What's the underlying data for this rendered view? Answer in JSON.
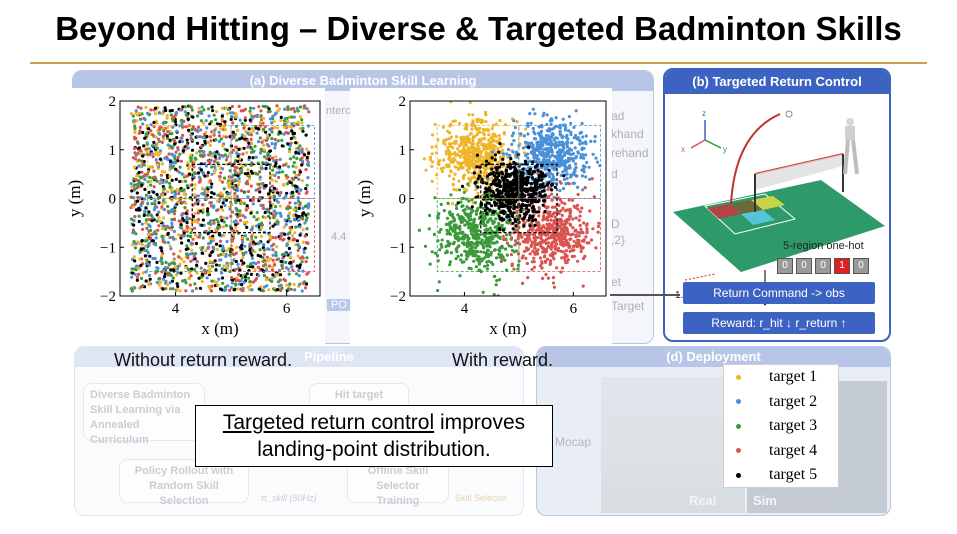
{
  "slide": {
    "title": "Beyond Hitting – Diverse & Targeted Badminton Skills"
  },
  "panel_a": {
    "header": "(a) Diverse Badminton Skill Learning",
    "partial_texts": {
      "interc": "Interc",
      "ad": "ad",
      "khand": "khand",
      "rehand": "rehand",
      "d": "d",
      "d2": "D",
      "set2": ",2}",
      "et": "et",
      "target": "Target",
      "dist": "4.4 r",
      "po": "PO"
    }
  },
  "panel_b": {
    "header": "(b) Targeted Return Control",
    "axis_z": "z",
    "axis_y": "y",
    "axis_x": "x",
    "distance": "1.5 m",
    "onehot_label": "5-region one-hot",
    "onehot_values": [
      "0",
      "0",
      "0",
      "1",
      "0"
    ],
    "return_command": "Return Command  -> obs",
    "reward": "Reward: r_hit ↓   r_return ↑"
  },
  "panel_c": {
    "header_partial": "Pipeline",
    "box1": "Diverse Badminton Skill Learning via Annealed Curriculum",
    "box2": "Policy Rollout with Random Skill Selection",
    "box2_tag": "π_skill (50Hz)",
    "box3": "Hit target",
    "box4": "Offline Skill Selector Training",
    "box4_tag": "Skill Selector"
  },
  "panel_d": {
    "header": "(d) Deployment",
    "mocap": "Mocap",
    "real": "Real",
    "sim": "Sim"
  },
  "captions": {
    "left": "Without return reward.",
    "right": "With reward.",
    "callout_underlined": "Targeted return control",
    "callout_rest_1": " improves",
    "callout_rest_2": "landing-point distribution."
  },
  "legend": {
    "items": [
      {
        "label": "target 1",
        "color": "#f0b429"
      },
      {
        "label": "target 2",
        "color": "#4a90d9"
      },
      {
        "label": "target 3",
        "color": "#3a9a3a"
      },
      {
        "label": "target 4",
        "color": "#d9534f"
      },
      {
        "label": "target 5",
        "color": "#000000"
      }
    ]
  },
  "chart_data": [
    {
      "type": "scatter",
      "title": "",
      "xlabel": "x (m)",
      "ylabel": "y (m)",
      "xlim": [
        3.0,
        6.6
      ],
      "ylim": [
        -2.0,
        2.0
      ],
      "x_ticks": [
        "4",
        "6"
      ],
      "y_ticks": [
        "2",
        "1",
        "0",
        "−1",
        "−2"
      ],
      "distribution": "uniform mix of all five target colors",
      "series": [
        {
          "name": "target 1",
          "center": [
            4.9,
            0.0
          ],
          "spread": [
            1.7,
            1.9
          ]
        },
        {
          "name": "target 2",
          "center": [
            4.9,
            0.0
          ],
          "spread": [
            1.7,
            1.9
          ]
        },
        {
          "name": "target 3",
          "center": [
            4.9,
            0.0
          ],
          "spread": [
            1.7,
            1.9
          ]
        },
        {
          "name": "target 4",
          "center": [
            4.9,
            0.0
          ],
          "spread": [
            1.7,
            1.9
          ]
        },
        {
          "name": "target 5",
          "center": [
            4.9,
            0.0
          ],
          "spread": [
            1.7,
            1.9
          ]
        }
      ],
      "target_regions": [
        {
          "name": "target 1",
          "x": [
            3.5,
            5.0
          ],
          "y": [
            0.0,
            1.5
          ]
        },
        {
          "name": "target 2",
          "x": [
            5.0,
            6.5
          ],
          "y": [
            0.0,
            1.5
          ]
        },
        {
          "name": "target 3",
          "x": [
            3.5,
            5.0
          ],
          "y": [
            -1.5,
            0.0
          ]
        },
        {
          "name": "target 4",
          "x": [
            5.0,
            6.5
          ],
          "y": [
            -1.5,
            0.0
          ]
        },
        {
          "name": "target 5",
          "x": [
            4.3,
            5.7
          ],
          "y": [
            -0.7,
            0.7
          ]
        }
      ]
    },
    {
      "type": "scatter",
      "title": "",
      "xlabel": "x (m)",
      "ylabel": "y (m)",
      "xlim": [
        3.0,
        6.6
      ],
      "ylim": [
        -2.0,
        2.0
      ],
      "x_ticks": [
        "4",
        "6"
      ],
      "y_ticks": [
        "2",
        "1",
        "0",
        "−1",
        "−2"
      ],
      "series": [
        {
          "name": "target 1",
          "center": [
            4.2,
            0.9
          ],
          "spread": [
            0.35,
            0.35
          ]
        },
        {
          "name": "target 2",
          "center": [
            5.6,
            0.9
          ],
          "spread": [
            0.35,
            0.35
          ]
        },
        {
          "name": "target 3",
          "center": [
            4.2,
            -0.7
          ],
          "spread": [
            0.35,
            0.4
          ]
        },
        {
          "name": "target 4",
          "center": [
            5.6,
            -0.7
          ],
          "spread": [
            0.35,
            0.4
          ]
        },
        {
          "name": "target 5",
          "center": [
            4.9,
            0.15
          ],
          "spread": [
            0.3,
            0.3
          ]
        }
      ],
      "target_regions": [
        {
          "name": "target 1",
          "x": [
            3.5,
            5.0
          ],
          "y": [
            0.0,
            1.5
          ]
        },
        {
          "name": "target 2",
          "x": [
            5.0,
            6.5
          ],
          "y": [
            0.0,
            1.5
          ]
        },
        {
          "name": "target 3",
          "x": [
            3.5,
            5.0
          ],
          "y": [
            -1.5,
            0.0
          ]
        },
        {
          "name": "target 4",
          "x": [
            5.0,
            6.5
          ],
          "y": [
            -1.5,
            0.0
          ]
        },
        {
          "name": "target 5",
          "x": [
            4.3,
            5.7
          ],
          "y": [
            -0.7,
            0.7
          ]
        }
      ]
    }
  ]
}
